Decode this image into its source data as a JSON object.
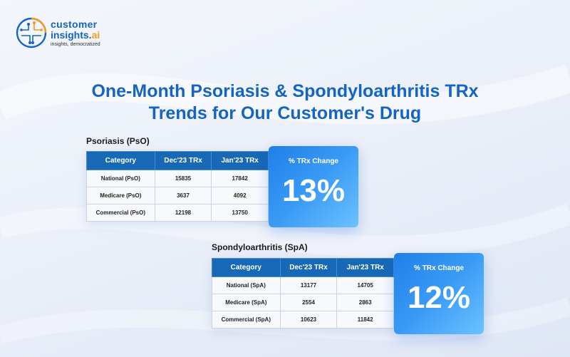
{
  "logo": {
    "line1": "customer",
    "line2_main": "insights.",
    "line2_accent": "ai",
    "tagline": "insights, democratized",
    "colors": {
      "blue": "#1565c0",
      "orange": "#f39a1e"
    }
  },
  "title": {
    "line1": "One-Month Psoriasis & Spondyloarthritis TRx",
    "line2": "Trends for Our Customer's Drug"
  },
  "psoriasis": {
    "section_title": "Psoriasis (PsO)",
    "headers": [
      "Category",
      "Dec'23 TRx",
      "Jan'23 TRx"
    ],
    "rows": [
      [
        "National (PsO)",
        "15835",
        "17842"
      ],
      [
        "Medicare (PsO)",
        "3637",
        "4092"
      ],
      [
        "Commercial (PsO)",
        "12198",
        "13750"
      ]
    ],
    "change_label": "% TRx Change",
    "change_value": "13%"
  },
  "spondyloarthritis": {
    "section_title": "Spondyloarthritis (SpA)",
    "headers": [
      "Category",
      "Dec'23 TRx",
      "Jan'23 TRx"
    ],
    "rows": [
      [
        "National (SpA)",
        "13177",
        "14705"
      ],
      [
        "Medicare (SpA)",
        "2554",
        "2863"
      ],
      [
        "Commercial (SpA)",
        "10623",
        "11842"
      ]
    ],
    "change_label": "% TRx Change",
    "change_value": "12%"
  },
  "colors": {
    "title_blue": "#1565c0",
    "header_blue": "#1769b5",
    "card_gradient_start": "#1f7fe8",
    "card_gradient_end": "#6cc2ff"
  }
}
